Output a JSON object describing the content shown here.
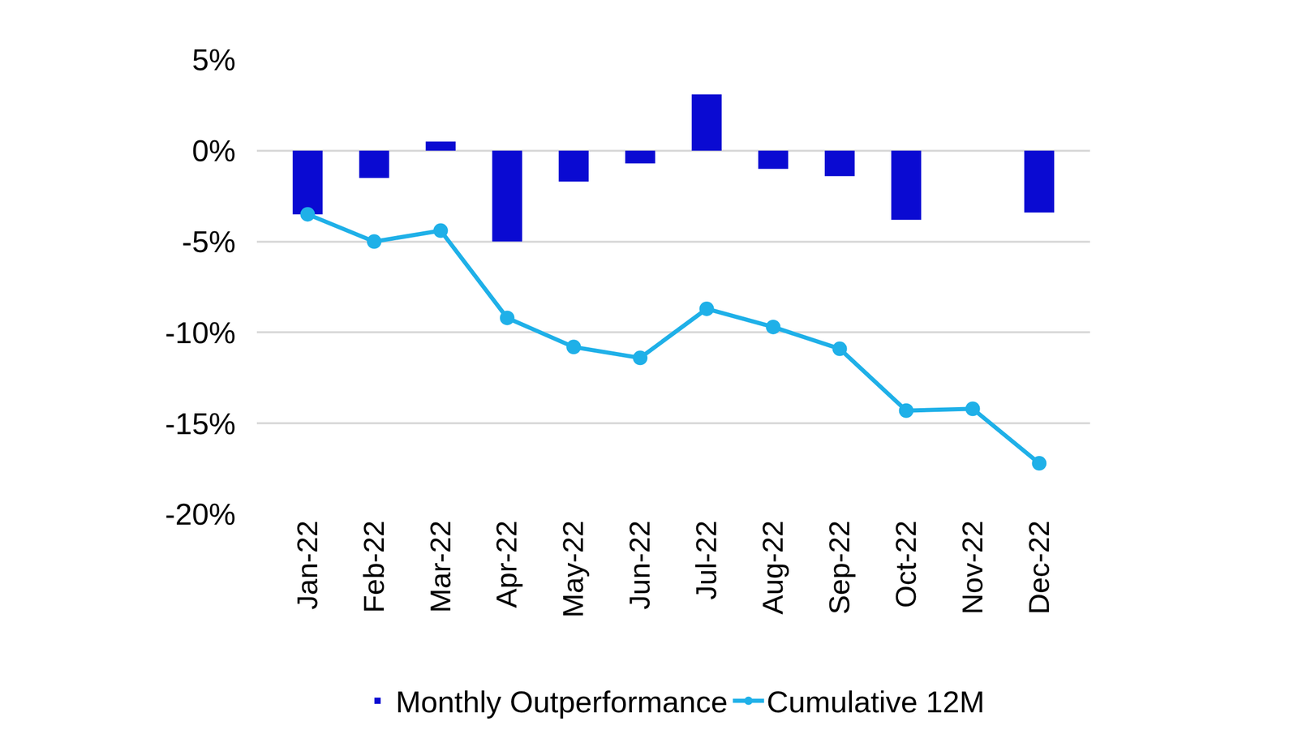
{
  "chart_data": {
    "type": "bar",
    "categories": [
      "Jan-22",
      "Feb-22",
      "Mar-22",
      "Apr-22",
      "May-22",
      "Jun-22",
      "Jul-22",
      "Aug-22",
      "Sep-22",
      "Oct-22",
      "Nov-22",
      "Dec-22"
    ],
    "series": [
      {
        "name": "Monthly Outperformance",
        "type": "bar",
        "color": "#0a0ad2",
        "values": [
          -3.5,
          -1.5,
          0.5,
          -5.0,
          -1.7,
          -0.7,
          3.1,
          -1.0,
          -1.4,
          -3.8,
          0,
          -3.4
        ]
      },
      {
        "name": "Cumulative 12M",
        "type": "line",
        "color": "#1fb0e8",
        "marker": "circle",
        "values": [
          -3.5,
          -5.0,
          -4.4,
          -9.2,
          -10.8,
          -11.4,
          -8.7,
          -9.7,
          -10.9,
          -14.3,
          -14.2,
          -17.2
        ]
      }
    ],
    "ylim": [
      -20,
      5
    ],
    "yticks": [
      {
        "value": 5,
        "label": "5%"
      },
      {
        "value": 0,
        "label": "0%"
      },
      {
        "value": -5,
        "label": "-5%"
      },
      {
        "value": -10,
        "label": "-10%"
      },
      {
        "value": -15,
        "label": "-15%"
      },
      {
        "value": -20,
        "label": "-20%"
      }
    ],
    "grid": true,
    "legend": "bottom"
  }
}
